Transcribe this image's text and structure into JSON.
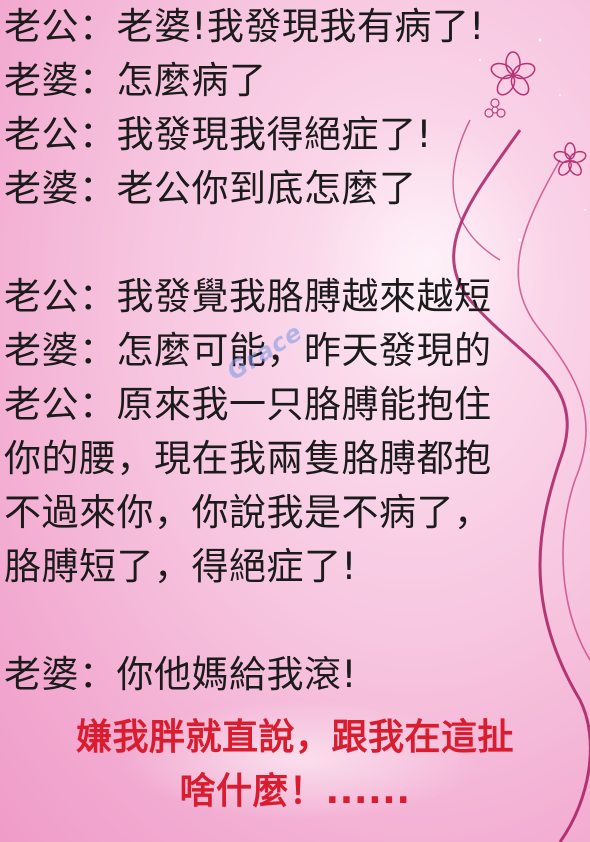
{
  "dialogue": {
    "block1": [
      "老公：老婆!我發現我有病了!",
      "老婆：怎麼病了",
      "老公：我發現我得絕症了!",
      "老婆：老公你到底怎麼了"
    ],
    "block2": [
      "老公：我發覺我胳膊越來越短",
      "老婆：怎麼可能，昨天發現的",
      "老公：原來我一只胳膊能抱住",
      "你的腰，現在我兩隻胳膊都抱",
      "不過來你，你說我是不病了，",
      "胳膊短了，得絕症了!"
    ],
    "block3": [
      "老婆：你他媽給我滾!"
    ]
  },
  "punchline": [
    "嫌我胖就直說，跟我在這扯",
    "啥什麼！......"
  ],
  "watermark": "Grace",
  "colors": {
    "text": "#1b1b1b",
    "punchline": "#d91c2e",
    "background": "#f7c6e0"
  }
}
